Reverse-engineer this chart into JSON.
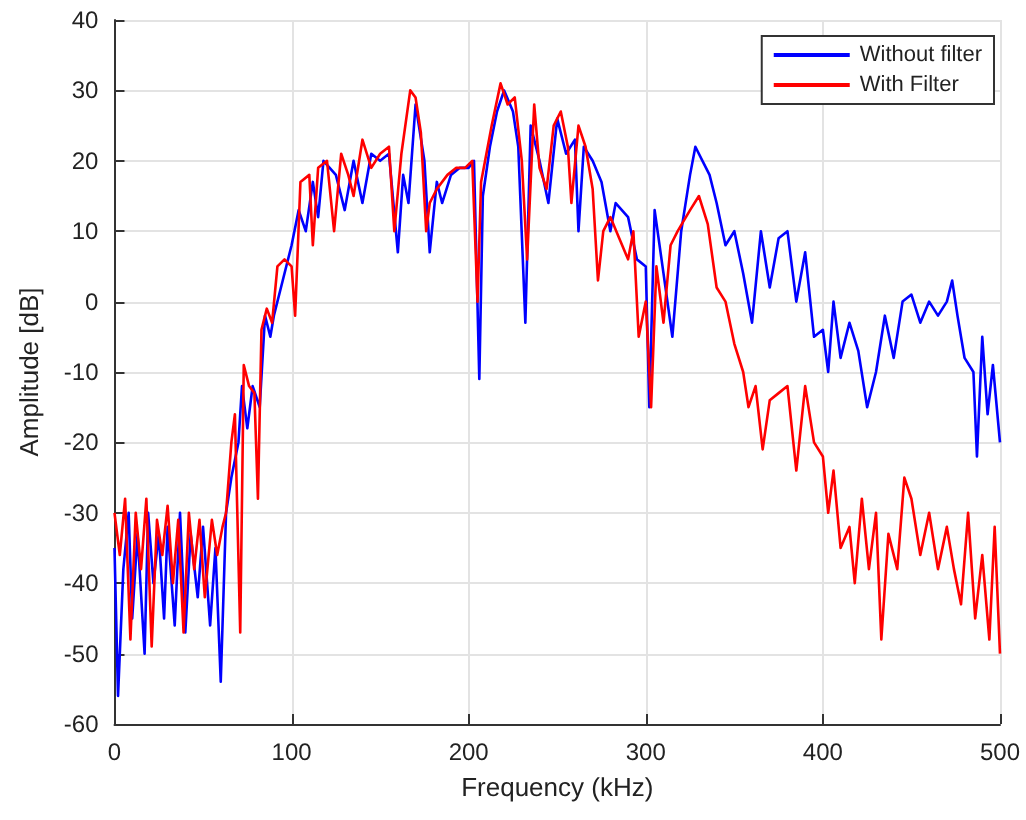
{
  "chart_data": {
    "type": "line",
    "xlabel": "Frequency (kHz)",
    "ylabel": "Amplitude [dB]",
    "xlim": [
      0,
      500
    ],
    "xticks": [
      0,
      100,
      200,
      300,
      400,
      500
    ],
    "ylim": [
      -60,
      40
    ],
    "yticks": [
      -60,
      -50,
      -40,
      -30,
      -20,
      -10,
      0,
      10,
      20,
      30,
      40
    ],
    "grid": true,
    "legend": "top right",
    "marker": "none",
    "line_style": "solid",
    "series": [
      {
        "name": "Without filter",
        "color": "#0000ff",
        "x": [
          0,
          2,
          5,
          8,
          10,
          13,
          17,
          19,
          22,
          25,
          28,
          30,
          34,
          37,
          40,
          43,
          47,
          50,
          54,
          57,
          60,
          63,
          66,
          70,
          72,
          75,
          78,
          82,
          85,
          88,
          90,
          95,
          100,
          104,
          108,
          112,
          115,
          118,
          125,
          130,
          135,
          140,
          145,
          150,
          155,
          160,
          163,
          166,
          170,
          175,
          178,
          182,
          185,
          190,
          195,
          200,
          203,
          206,
          208,
          212,
          216,
          220,
          225,
          228,
          232,
          235,
          240,
          245,
          250,
          255,
          260,
          262,
          265,
          270,
          275,
          280,
          283,
          290,
          295,
          300,
          302,
          305,
          310,
          315,
          320,
          325,
          328,
          332,
          336,
          340,
          345,
          350,
          355,
          360,
          365,
          370,
          375,
          380,
          385,
          390,
          395,
          400,
          403,
          406,
          410,
          415,
          420,
          425,
          430,
          435,
          440,
          445,
          450,
          455,
          460,
          465,
          470,
          473,
          476,
          480,
          485,
          487,
          490,
          493,
          496,
          500
        ],
        "values": [
          -35,
          -56,
          -38,
          -30,
          -45,
          -33,
          -50,
          -30,
          -40,
          -33,
          -45,
          -32,
          -46,
          -30,
          -47,
          -33,
          -42,
          -32,
          -46,
          -35,
          -54,
          -30,
          -25,
          -20,
          -12,
          -18,
          -12,
          -15,
          -2,
          -5,
          -2,
          3,
          8,
          13,
          10,
          17,
          12,
          20,
          18,
          13,
          20,
          14,
          21,
          20,
          21,
          7,
          18,
          14,
          28,
          20,
          7,
          17,
          14,
          18,
          19,
          19,
          20,
          -11,
          15,
          22,
          27,
          30,
          27,
          22,
          -3,
          25,
          20,
          14,
          26,
          21,
          23,
          10,
          22,
          20,
          17,
          10,
          14,
          12,
          6,
          5,
          -15,
          13,
          4,
          -5,
          10,
          18,
          22,
          20,
          18,
          14,
          8,
          10,
          4,
          -3,
          10,
          2,
          9,
          10,
          0,
          7,
          -5,
          -4,
          -10,
          0,
          -8,
          -3,
          -7,
          -15,
          -10,
          -2,
          -8,
          0,
          1,
          -3,
          0,
          -2,
          0,
          3,
          -2,
          -8,
          -10,
          -22,
          -5,
          -16,
          -9,
          -20
        ]
      },
      {
        "name": "With Filter",
        "color": "#ff0000",
        "x": [
          0,
          3,
          6,
          9,
          12,
          15,
          18,
          21,
          24,
          27,
          30,
          33,
          36,
          39,
          42,
          45,
          48,
          51,
          55,
          58,
          61,
          63,
          66,
          68,
          71,
          73,
          76,
          79,
          81,
          83,
          86,
          89,
          92,
          96,
          100,
          102,
          105,
          110,
          112,
          115,
          120,
          124,
          128,
          132,
          135,
          140,
          145,
          150,
          155,
          158,
          162,
          167,
          170,
          173,
          176,
          178,
          182,
          188,
          193,
          198,
          202,
          205,
          207,
          213,
          218,
          222,
          226,
          230,
          233,
          237,
          240,
          244,
          248,
          252,
          256,
          258,
          262,
          266,
          270,
          273,
          276,
          280,
          285,
          290,
          293,
          296,
          300,
          303,
          306,
          310,
          314,
          318,
          325,
          330,
          335,
          340,
          345,
          350,
          355,
          358,
          362,
          366,
          370,
          375,
          380,
          385,
          390,
          395,
          400,
          403,
          406,
          410,
          415,
          418,
          422,
          426,
          430,
          433,
          437,
          442,
          446,
          450,
          455,
          460,
          465,
          470,
          474,
          478,
          482,
          486,
          490,
          494,
          497,
          500
        ],
        "values": [
          -30,
          -36,
          -28,
          -48,
          -30,
          -38,
          -28,
          -49,
          -31,
          -36,
          -29,
          -40,
          -31,
          -47,
          -30,
          -38,
          -31,
          -42,
          -31,
          -36,
          -32,
          -30,
          -20,
          -16,
          -47,
          -9,
          -12,
          -13,
          -28,
          -4,
          -1,
          -3,
          5,
          6,
          5,
          -2,
          17,
          18,
          8,
          19,
          20,
          10,
          21,
          18,
          15,
          23,
          19,
          21,
          22,
          10,
          21,
          30,
          29,
          24,
          10,
          14,
          16,
          18,
          19,
          19,
          20,
          0,
          17,
          25,
          31,
          28,
          29,
          20,
          6,
          28,
          19,
          16,
          25,
          27,
          22,
          14,
          25,
          22,
          16,
          3,
          10,
          12,
          9,
          6,
          10,
          -5,
          0,
          -15,
          5,
          -3,
          8,
          10,
          13,
          15,
          11,
          2,
          0,
          -6,
          -10,
          -15,
          -12,
          -21,
          -14,
          -13,
          -12,
          -24,
          -12,
          -20,
          -22,
          -30,
          -24,
          -35,
          -32,
          -40,
          -28,
          -38,
          -30,
          -48,
          -33,
          -38,
          -25,
          -28,
          -36,
          -30,
          -38,
          -32,
          -38,
          -43,
          -30,
          -45,
          -36,
          -48,
          -32,
          -50
        ]
      }
    ]
  }
}
